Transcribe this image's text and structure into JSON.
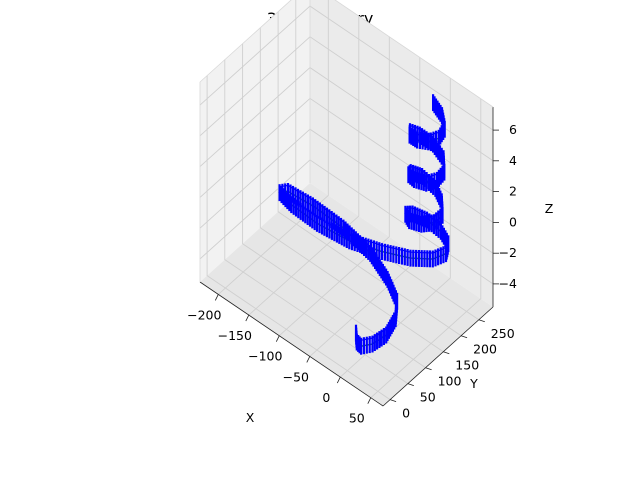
{
  "chart_data": {
    "type": "line3d",
    "title": "3D Trajectory",
    "xlabel": "X",
    "ylabel": "Y",
    "zlabel": "Z",
    "xlim": [
      -230,
      70
    ],
    "ylim": [
      -20,
      290
    ],
    "zlim": [
      -5.5,
      7.5
    ],
    "xticks": [
      -200,
      -150,
      -100,
      -50,
      0,
      50
    ],
    "yticks": [
      0,
      50,
      100,
      150,
      200,
      250
    ],
    "zticks": [
      -4,
      -2,
      0,
      2,
      4,
      6
    ],
    "xtick_labels": [
      "−200",
      "−150",
      "−100",
      "−50",
      "0",
      "50"
    ],
    "ytick_labels": [
      "0",
      "50",
      "100",
      "150",
      "200",
      "250"
    ],
    "ztick_labels": [
      "−4",
      "−2",
      "0",
      "2",
      "4",
      "6"
    ],
    "grid": true,
    "series": [
      {
        "line_color": "#1a7a3a",
        "arrow_color": "#0000ff",
        "points": [
          [
            -15,
            50,
            -4.5
          ],
          [
            -5,
            35,
            -4.5
          ],
          [
            5,
            30,
            -4.4
          ],
          [
            15,
            45,
            -4.3
          ],
          [
            20,
            75,
            -4.2
          ],
          [
            15,
            110,
            -4.0
          ],
          [
            0,
            140,
            -3.9
          ],
          [
            -30,
            165,
            -3.8
          ],
          [
            -70,
            185,
            -3.6
          ],
          [
            -120,
            195,
            -3.5
          ],
          [
            -170,
            195,
            -3.4
          ],
          [
            -205,
            185,
            -3.2
          ],
          [
            -210,
            170,
            -3.1
          ],
          [
            -185,
            160,
            -3.0
          ],
          [
            -140,
            155,
            -2.9
          ],
          [
            -90,
            160,
            -2.8
          ],
          [
            -45,
            175,
            -2.6
          ],
          [
            -10,
            195,
            -2.5
          ],
          [
            15,
            215,
            -2.3
          ],
          [
            25,
            235,
            -2.1
          ],
          [
            20,
            250,
            -1.9
          ],
          [
            5,
            255,
            -1.6
          ],
          [
            -15,
            250,
            -1.3
          ],
          [
            -30,
            235,
            -1.0
          ],
          [
            -30,
            215,
            -0.6
          ],
          [
            -15,
            200,
            -0.3
          ],
          [
            5,
            200,
            0.0
          ],
          [
            20,
            210,
            0.3
          ],
          [
            25,
            225,
            0.6
          ],
          [
            15,
            240,
            0.9
          ],
          [
            0,
            248,
            1.2
          ],
          [
            -20,
            245,
            1.5
          ],
          [
            -30,
            230,
            1.8
          ],
          [
            -25,
            215,
            2.1
          ],
          [
            -10,
            205,
            2.4
          ],
          [
            10,
            205,
            2.7
          ],
          [
            22,
            215,
            3.0
          ],
          [
            25,
            230,
            3.3
          ],
          [
            15,
            245,
            3.6
          ],
          [
            -5,
            250,
            3.9
          ],
          [
            -22,
            242,
            4.2
          ],
          [
            -30,
            228,
            4.5
          ],
          [
            -22,
            213,
            4.8
          ],
          [
            -5,
            205,
            5.1
          ],
          [
            12,
            207,
            5.4
          ],
          [
            23,
            218,
            5.7
          ],
          [
            24,
            233,
            6.0
          ],
          [
            12,
            246,
            6.3
          ],
          [
            -5,
            250,
            6.6
          ]
        ]
      }
    ]
  }
}
